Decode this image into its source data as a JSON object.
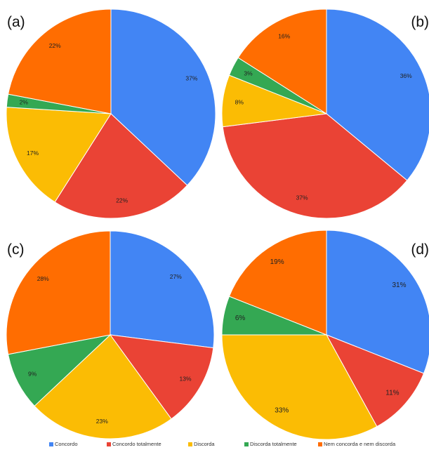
{
  "chart_data": [
    {
      "type": "pie",
      "panel": "(a)",
      "categories": [
        "Concordo",
        "Concordo totalmente",
        "Discorda",
        "Discorda totalmente",
        "Nem concorda e nem discorda"
      ],
      "values": [
        37,
        22,
        17,
        2,
        22
      ],
      "labels": [
        "37%",
        "22%",
        "17%",
        "2%",
        "22%"
      ]
    },
    {
      "type": "pie",
      "panel": "(b)",
      "categories": [
        "Concordo",
        "Concordo totalmente",
        "Discorda",
        "Discorda totalmente",
        "Nem concorda e nem discorda"
      ],
      "values": [
        36,
        37,
        8,
        3,
        16
      ],
      "labels": [
        "36%",
        "37%",
        "8%",
        "3%",
        "16%"
      ]
    },
    {
      "type": "pie",
      "panel": "(c)",
      "categories": [
        "Concordo",
        "Concordo totalmente",
        "Discorda",
        "Discorda totalmente",
        "Nem concorda e nem discorda"
      ],
      "values": [
        27,
        13,
        23,
        9,
        28
      ],
      "labels": [
        "27%",
        "13%",
        "23%",
        "9%",
        "28%"
      ]
    },
    {
      "type": "pie",
      "panel": "(d)",
      "categories": [
        "Concordo",
        "Concordo totalmente",
        "Discorda",
        "Discorda totalmente",
        "Nem concorda e nem discorda"
      ],
      "values": [
        31,
        11,
        33,
        6,
        19
      ],
      "labels": [
        "31%",
        "11%",
        "33%",
        "6%",
        "19%"
      ]
    }
  ],
  "legend": [
    {
      "label": "Concordo",
      "color": "#4285f4"
    },
    {
      "label": "Concordo totalmente",
      "color": "#ea4335"
    },
    {
      "label": "Discorda",
      "color": "#fbbc04"
    },
    {
      "label": "Discorda totalmente",
      "color": "#34a853"
    },
    {
      "label": "Nem concorda e nem discorda",
      "color": "#ff6d01"
    }
  ],
  "colors": [
    "#4285f4",
    "#ea4335",
    "#fbbc04",
    "#34a853",
    "#ff6d01"
  ]
}
